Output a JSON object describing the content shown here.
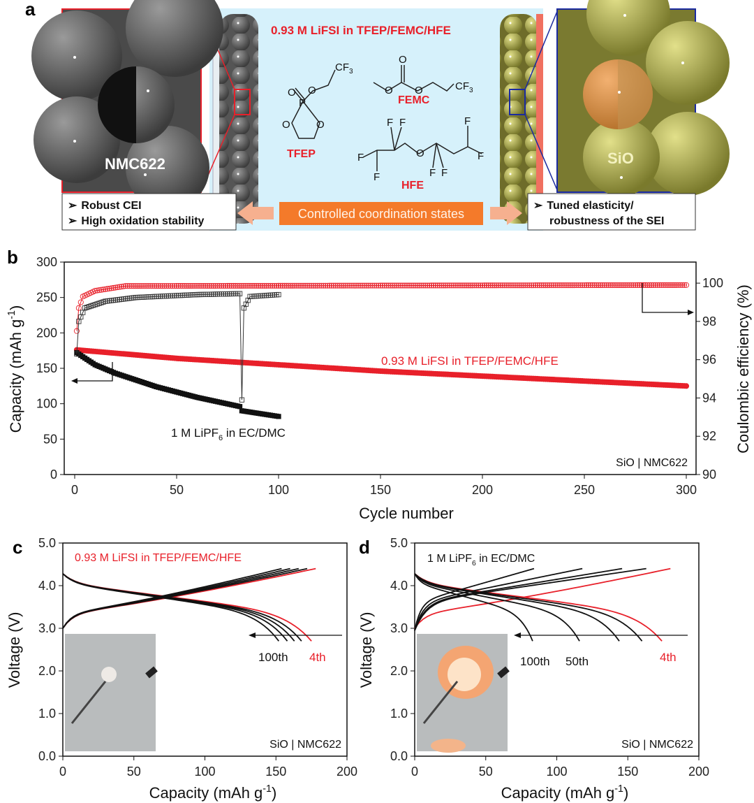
{
  "panel_a": {
    "label": "a",
    "title": "0.93 M LiFSI in TFEP/FEMC/HFE",
    "cathode_label": "NMC622",
    "anode_label": "SiO",
    "molecules": {
      "tfep": "TFEP",
      "femc": "FEMC",
      "hfe": "HFE",
      "cf3": "CF",
      "cf3_sub": "3",
      "o": "O",
      "p": "P",
      "f": "F"
    },
    "left_box": [
      "Robust CEI",
      "High oxidation stability"
    ],
    "right_box": [
      "Tuned elasticity/",
      "robustness of the SEI"
    ],
    "center_button": "Controlled coordination states",
    "bullet": "➢",
    "colors": {
      "red": "#e8202a",
      "blue_bg": "#d6f1fb",
      "orange": "#f47a2a",
      "peach": "#f6b08f",
      "olive": "#b9b85a"
    }
  },
  "chart_data": [
    {
      "panel": "b",
      "type": "scatter",
      "xlabel": "Cycle number",
      "ylabel": "Capacity (mAh g",
      "ylabel_sup": "-1",
      "ylabel_end": ")",
      "y2label": "Coulombic efficiency (%)",
      "xlim": [
        0,
        300
      ],
      "ylim": [
        0,
        300
      ],
      "y2lim": [
        90,
        101.1
      ],
      "xticks": [
        "0",
        "50",
        "100",
        "150",
        "200",
        "250",
        "300"
      ],
      "yticks": [
        "0",
        "50",
        "100",
        "150",
        "200",
        "250",
        "300"
      ],
      "y2ticks": [
        "90",
        "92",
        "94",
        "96",
        "98",
        "100"
      ],
      "annotations": {
        "tfep_label": "0.93 M LiFSI in TFEP/FEMC/HFE",
        "lipf6_pre": "1 M LiPF",
        "lipf6_sub": "6",
        "lipf6_post": " in EC/DMC",
        "cell": "SiO | NMC622"
      },
      "series": [
        {
          "name": "0.93 M LiFSI in TFEP/FEMC/HFE capacity",
          "axis": "left",
          "marker": "filled-circle",
          "color": "#e8202a",
          "cycles": [
            1,
            300
          ],
          "keypoints": [
            [
              1,
              176
            ],
            [
              50,
              164
            ],
            [
              100,
              155
            ],
            [
              150,
              146
            ],
            [
              200,
              139
            ],
            [
              250,
              132
            ],
            [
              300,
              125
            ]
          ]
        },
        {
          "name": "1 M LiPF6 in EC/DMC capacity",
          "axis": "left",
          "marker": "filled-square",
          "color": "#111111",
          "cycles": [
            1,
            100
          ],
          "keypoints": [
            [
              1,
              172
            ],
            [
              10,
              155
            ],
            [
              20,
              143
            ],
            [
              40,
              124
            ],
            [
              60,
              109
            ],
            [
              81,
              96
            ],
            [
              82,
              90
            ],
            [
              100,
              82
            ]
          ]
        },
        {
          "name": "0.93 M LiFSI in TFEP/FEMC/HFE CE",
          "axis": "right",
          "marker": "open-circle",
          "color": "#e8202a",
          "cycles": [
            1,
            300
          ],
          "keypoints": [
            [
              1,
              97.5
            ],
            [
              2,
              98.7
            ],
            [
              4,
              99.3
            ],
            [
              10,
              99.6
            ],
            [
              25,
              99.85
            ],
            [
              300,
              99.9
            ]
          ]
        },
        {
          "name": "1 M LiPF6 in EC/DMC CE",
          "axis": "right",
          "marker": "open-square",
          "color": "#333333",
          "cycles": [
            1,
            100
          ],
          "keypoints": [
            [
              1,
              96.3
            ],
            [
              2,
              98.0
            ],
            [
              5,
              98.7
            ],
            [
              15,
              99.05
            ],
            [
              30,
              99.25
            ],
            [
              60,
              99.4
            ],
            [
              81,
              99.45
            ],
            [
              82,
              93.9
            ],
            [
              83,
              98.7
            ],
            [
              86,
              99.3
            ],
            [
              100,
              99.4
            ]
          ]
        }
      ]
    },
    {
      "panel": "c",
      "type": "line",
      "xlabel": "Capacity (mAh g",
      "xlabel_sup": "-1",
      "xlabel_end": ")",
      "ylabel": "Voltage (V)",
      "xlim": [
        0,
        200
      ],
      "ylim": [
        0,
        5
      ],
      "xticks": [
        "0",
        "50",
        "100",
        "150",
        "200"
      ],
      "yticks": [
        "0.0",
        "1.0",
        "2.0",
        "3.0",
        "4.0",
        "5.0"
      ],
      "legend": "0.93 M LiFSI in TFEP/FEMC/HFE",
      "cell": "SiO | NMC622",
      "cycle_labels": {
        "first": "100th",
        "last": "4th"
      },
      "curves": [
        {
          "cycle": "4th",
          "color": "#e8202a",
          "charge_end": 178,
          "discharge_end": 175,
          "style": "stable"
        },
        {
          "cycle": "n",
          "color": "#111111",
          "charge_end": 172,
          "discharge_end": 168,
          "style": "stable"
        },
        {
          "cycle": "n",
          "color": "#111111",
          "charge_end": 166,
          "discharge_end": 163,
          "style": "stable"
        },
        {
          "cycle": "n",
          "color": "#111111",
          "charge_end": 160,
          "discharge_end": 158,
          "style": "stable"
        },
        {
          "cycle": "100th",
          "color": "#111111",
          "charge_end": 154,
          "discharge_end": 152,
          "style": "stable"
        }
      ]
    },
    {
      "panel": "d",
      "type": "line",
      "xlabel": "Capacity (mAh g",
      "xlabel_sup": "-1",
      "xlabel_end": ")",
      "ylabel": "Voltage (V)",
      "xlim": [
        0,
        200
      ],
      "ylim": [
        0,
        5
      ],
      "xticks": [
        "0",
        "50",
        "100",
        "150",
        "200"
      ],
      "yticks": [
        "0.0",
        "1.0",
        "2.0",
        "3.0",
        "4.0",
        "5.0"
      ],
      "legend_pre": "1 M LiPF",
      "legend_sub": "6",
      "legend_post": " in EC/DMC",
      "cell": "SiO | NMC622",
      "cycle_labels": {
        "first": "100th",
        "mid": "50th",
        "last": "4th"
      },
      "curves": [
        {
          "cycle": "4th",
          "color": "#e8202a",
          "charge_end": 180,
          "discharge_end": 174,
          "style": "stable"
        },
        {
          "cycle": "n",
          "color": "#111111",
          "charge_end": 163,
          "discharge_end": 160,
          "style": "fade"
        },
        {
          "cycle": "n",
          "color": "#111111",
          "charge_end": 146,
          "discharge_end": 144,
          "style": "fade"
        },
        {
          "cycle": "50th",
          "color": "#111111",
          "charge_end": 118,
          "discharge_end": 116,
          "style": "fade"
        },
        {
          "cycle": "100th",
          "color": "#111111",
          "charge_end": 84,
          "discharge_end": 83,
          "style": "fade"
        }
      ]
    }
  ]
}
